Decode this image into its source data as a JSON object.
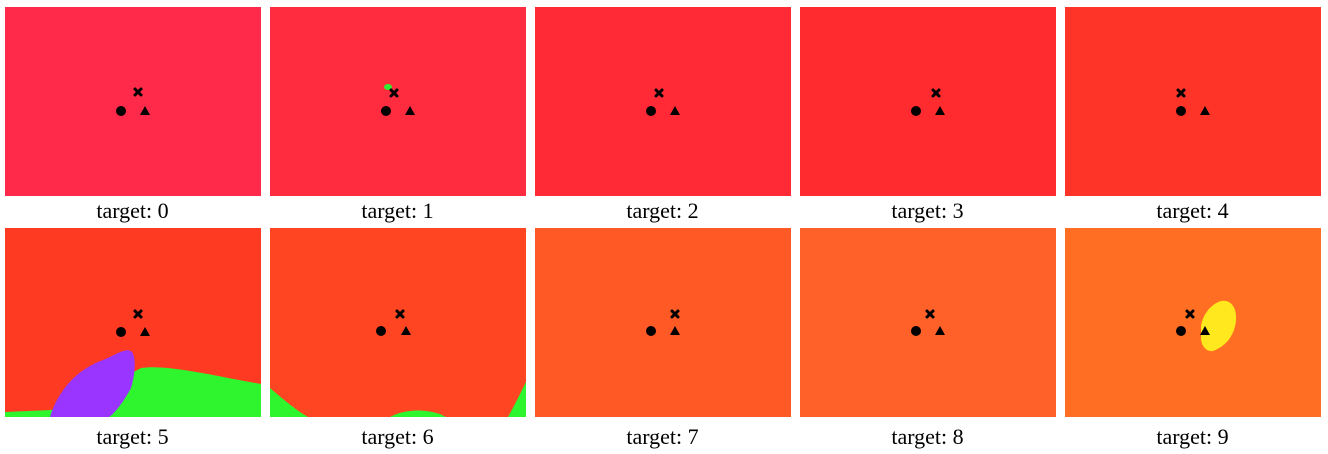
{
  "panels": [
    {
      "label": "target: 0",
      "background": "#ff2a4a"
    },
    {
      "label": "target: 1",
      "background": "#ff2c40",
      "blobs": [
        {
          "color": "#33ee33"
        }
      ]
    },
    {
      "label": "target: 2",
      "background": "#ff2a36"
    },
    {
      "label": "target: 3",
      "background": "#ff2b2e"
    },
    {
      "label": "target: 4",
      "background": "#ff3428"
    },
    {
      "label": "target: 5",
      "background": "#ff3a22",
      "blobs": [
        {
          "color": "#2ef52e"
        },
        {
          "color": "#9a35ff"
        }
      ]
    },
    {
      "label": "target: 6",
      "background": "#ff4522",
      "blobs": [
        {
          "color": "#2ef52e"
        }
      ]
    },
    {
      "label": "target: 7",
      "background": "#ff5a26"
    },
    {
      "label": "target: 8",
      "background": "#ff6128"
    },
    {
      "label": "target: 9",
      "background": "#ff6e22",
      "blobs": [
        {
          "color": "#ffe81e"
        }
      ]
    }
  ],
  "markers": {
    "cross": "x-icon",
    "circle": "circle-icon",
    "triangle": "triangle-icon",
    "color": "#000000"
  }
}
